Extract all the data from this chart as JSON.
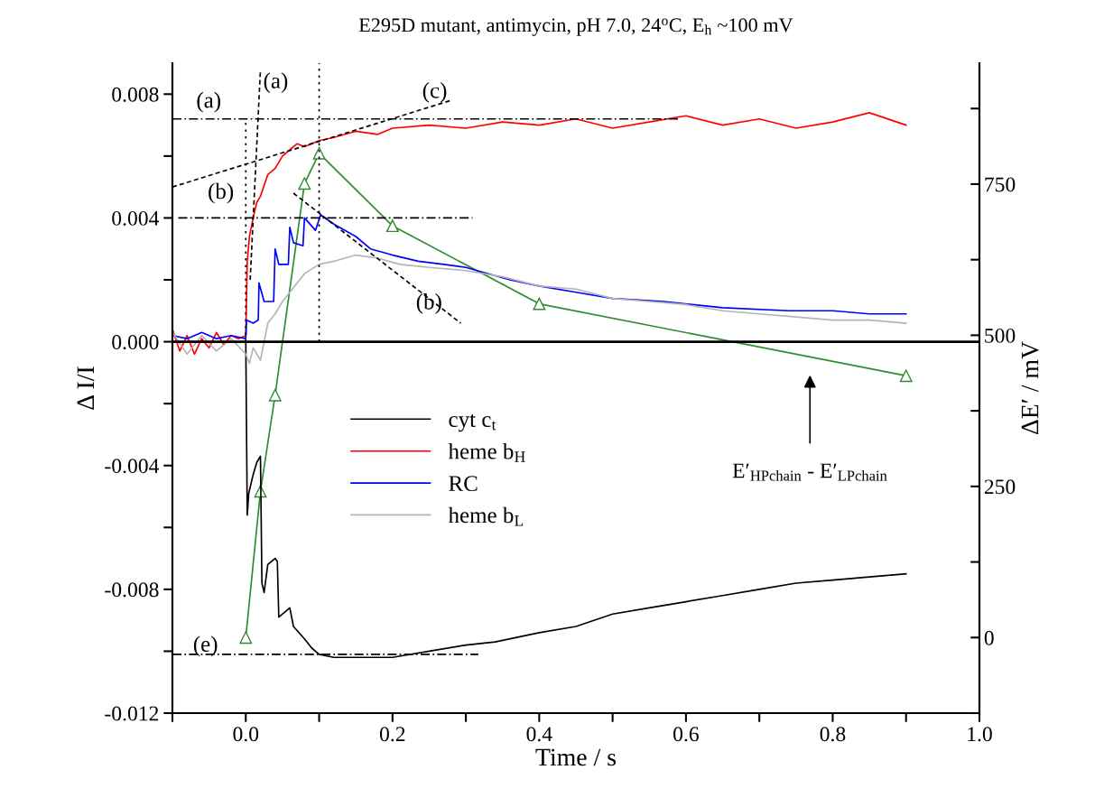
{
  "chart_data": {
    "type": "line",
    "title": "E295D mutant, antimycin, pH 7.0, 24$^{o}$C, E$_{h}$ ~100 mV",
    "xlabel": "Time / s",
    "ylabel": "Δ I/I",
    "y2label": "ΔE′ / mV",
    "xlim": [
      -0.1,
      1.0
    ],
    "xticks": [
      {
        "value": -0.1,
        "label": null
      },
      {
        "value": 0,
        "label": "0.0"
      },
      {
        "value": 0.1,
        "label": null
      },
      0.2,
      {
        "value": 0.3,
        "label": null
      },
      0.4,
      {
        "value": 0.5,
        "label": null
      },
      0.6,
      {
        "value": 0.7,
        "label": null
      },
      0.8,
      {
        "value": 0.9,
        "label": null
      },
      {
        "value": 1,
        "label": "1.0"
      }
    ],
    "ylim": [
      -0.012,
      0.009
    ],
    "yticks": [
      -0.012,
      {
        "value": -0.01,
        "label": null
      },
      -0.008,
      {
        "value": -0.006,
        "label": null
      },
      -0.004,
      {
        "value": -0.002,
        "label": null
      },
      {
        "value": 0,
        "label": "0.000"
      },
      {
        "value": 0.002,
        "label": null
      },
      0.004,
      {
        "value": 0.006,
        "label": null
      },
      0.008
    ],
    "y2lim": [
      -125,
      950
    ],
    "y2ticks": [
      {
        "value": -125,
        "label": null
      },
      0,
      {
        "value": 125,
        "label": null
      },
      250,
      {
        "value": 375,
        "label": null
      },
      500,
      {
        "value": 625,
        "label": null
      },
      750,
      {
        "value": 875,
        "label": null
      }
    ],
    "grid": false,
    "legend": "center",
    "ref_lines": [
      {
        "axis": "y",
        "value": 0,
        "color": "#000000",
        "line_style": "solid"
      }
    ],
    "series": [
      {
        "name": "cyt c$_{t}$",
        "color": "#000000",
        "x": [
          -0.1,
          -0.05,
          0,
          0.002,
          0.004,
          0.01,
          0.015,
          0.02,
          0.022,
          0.025,
          0.03,
          0.04,
          0.043,
          0.045,
          0.055,
          0.06,
          0.065,
          0.08,
          0.09,
          0.1,
          0.12,
          0.15,
          0.2,
          0.25,
          0.3,
          0.34,
          0.4,
          0.45,
          0.5,
          0.55,
          0.6,
          0.65,
          0.7,
          0.75,
          0.8,
          0.85,
          0.9
        ],
        "values": [
          0.0,
          0.0,
          0.0,
          -0.0056,
          -0.0049,
          -0.0043,
          -0.0039,
          -0.0037,
          -0.0078,
          -0.0081,
          -0.0072,
          -0.007,
          -0.0071,
          -0.0089,
          -0.0087,
          -0.0086,
          -0.0092,
          -0.0096,
          -0.0099,
          -0.0101,
          -0.0102,
          -0.0102,
          -0.0102,
          -0.01,
          -0.0098,
          -0.0097,
          -0.0094,
          -0.0092,
          -0.0088,
          -0.0086,
          -0.0084,
          -0.0082,
          -0.008,
          -0.0078,
          -0.0077,
          -0.0076,
          -0.0075
        ]
      },
      {
        "name": "heme b$_{H}$",
        "color": "#ff0000",
        "x": [
          -0.1,
          -0.09,
          -0.08,
          -0.07,
          -0.06,
          -0.05,
          -0.04,
          -0.03,
          -0.02,
          -0.01,
          0,
          0.002,
          0.005,
          0.01,
          0.015,
          0.02,
          0.03,
          0.04,
          0.05,
          0.06,
          0.07,
          0.08,
          0.1,
          0.12,
          0.15,
          0.18,
          0.2,
          0.25,
          0.3,
          0.35,
          0.4,
          0.45,
          0.5,
          0.55,
          0.6,
          0.65,
          0.7,
          0.75,
          0.8,
          0.85,
          0.9
        ],
        "values": [
          0.0004,
          -0.0003,
          0.0002,
          -0.0004,
          0.0001,
          -0.0002,
          0.0003,
          -0.0001,
          0.0002,
          0.0001,
          0.0002,
          0.0026,
          0.0034,
          0.004,
          0.0045,
          0.0047,
          0.0054,
          0.0056,
          0.006,
          0.0062,
          0.0064,
          0.0063,
          0.0065,
          0.0066,
          0.0068,
          0.0067,
          0.0069,
          0.007,
          0.0069,
          0.0071,
          0.007,
          0.0072,
          0.0069,
          0.0071,
          0.0073,
          0.007,
          0.0072,
          0.0069,
          0.0071,
          0.0074,
          0.007
        ]
      },
      {
        "name": "RC",
        "color": "#0000ff",
        "x": [
          -0.1,
          -0.08,
          -0.06,
          -0.04,
          -0.02,
          0,
          0.001,
          0.01,
          0.017,
          0.018,
          0.025,
          0.038,
          0.04,
          0.045,
          0.058,
          0.06,
          0.065,
          0.078,
          0.08,
          0.095,
          0.102,
          0.12,
          0.15,
          0.17,
          0.2,
          0.235,
          0.27,
          0.3,
          0.36,
          0.4,
          0.45,
          0.5,
          0.57,
          0.65,
          0.74,
          0.8,
          0.85,
          0.9
        ],
        "values": [
          0.0002,
          0.0001,
          0.0003,
          0.0001,
          0.0002,
          0.0001,
          0.0007,
          0.0006,
          0.0007,
          0.0019,
          0.0013,
          0.0013,
          0.003,
          0.0025,
          0.0025,
          0.0037,
          0.0032,
          0.0031,
          0.004,
          0.0036,
          0.0041,
          0.0038,
          0.0034,
          0.003,
          0.0028,
          0.0026,
          0.0025,
          0.0024,
          0.002,
          0.0018,
          0.0016,
          0.0014,
          0.0013,
          0.0011,
          0.001,
          0.001,
          0.0009,
          0.0009
        ]
      },
      {
        "name": "heme b$_{L}$",
        "color": "#b4b4b4",
        "x": [
          -0.1,
          -0.08,
          -0.06,
          -0.04,
          -0.02,
          0,
          0.005,
          0.01,
          0.02,
          0.03,
          0.04,
          0.05,
          0.06,
          0.07,
          0.08,
          0.1,
          0.12,
          0.15,
          0.18,
          0.21,
          0.25,
          0.3,
          0.35,
          0.4,
          0.45,
          0.5,
          0.55,
          0.6,
          0.65,
          0.7,
          0.75,
          0.8,
          0.85,
          0.9
        ],
        "values": [
          0.0003,
          -0.0004,
          0.0002,
          -0.0003,
          0.0001,
          -0.0004,
          -0.0007,
          -0.0002,
          -0.0006,
          0.0006,
          0.0009,
          0.0013,
          0.0016,
          0.0019,
          0.0022,
          0.0025,
          0.0026,
          0.0028,
          0.0027,
          0.0025,
          0.0024,
          0.0023,
          0.0021,
          0.0018,
          0.0017,
          0.0014,
          0.0013,
          0.0012,
          0.001,
          0.0009,
          0.0008,
          0.0007,
          0.0007,
          0.0006
        ]
      },
      {
        "color": "#2e8b2e",
        "axis": "y2",
        "marker": "triangle",
        "x": [
          0,
          0.02,
          0.04,
          0.08,
          0.1,
          0.2,
          0.4,
          0.9
        ],
        "values": [
          0,
          242,
          401,
          751,
          801,
          681,
          552,
          433
        ]
      },
      {
        "color": "#000000",
        "line_style": "dashdot",
        "x": [
          -0.1,
          0.59
        ],
        "values": [
          0.0072,
          0.0072
        ]
      },
      {
        "color": "#000000",
        "line_style": "dashdot",
        "x": [
          -0.092,
          0.309
        ],
        "values": [
          0.004,
          0.004
        ]
      },
      {
        "color": "#000000",
        "line_style": "dashdot",
        "x": [
          -0.1,
          0.317
        ],
        "values": [
          -0.0101,
          -0.0101
        ]
      },
      {
        "color": "#000000",
        "line_style": "dotted",
        "x": [
          0,
          0
        ],
        "values": [
          0,
          0.0072
        ]
      },
      {
        "color": "#000000",
        "line_style": "dotted",
        "x": [
          0.1,
          0.1
        ],
        "values": [
          0,
          0.009
        ]
      },
      {
        "color": "#000000",
        "line_style": "dashed",
        "x": [
          0.006,
          0.02
        ],
        "values": [
          0.002,
          0.0088
        ]
      },
      {
        "color": "#000000",
        "line_style": "dashed",
        "x": [
          -0.1,
          0.28
        ],
        "values": [
          0.005,
          0.0078
        ]
      },
      {
        "color": "#000000",
        "line_style": "dashed",
        "x": [
          0.065,
          0.293
        ],
        "values": [
          0.0048,
          0.0006
        ]
      }
    ],
    "annotations": [
      "(a)",
      "(a)",
      "(c)",
      "(b)",
      "(b)",
      "(e)",
      "E′$_{HPchain}$ - E′$_{LPchain}$"
    ]
  }
}
